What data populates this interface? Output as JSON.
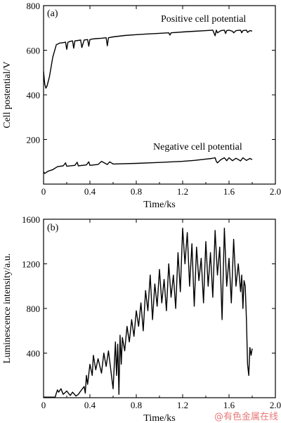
{
  "chart_data": [
    {
      "type": "line",
      "panel_label": "(a)",
      "xlabel": "Time/ks",
      "ylabel": "Cell postential/V",
      "xlim": [
        0,
        2.0
      ],
      "ylim": [
        0,
        800
      ],
      "xticks": [
        "0",
        "0.4",
        "0.8",
        "1.2",
        "1.6",
        "2.0"
      ],
      "xtick_values": [
        0,
        0.4,
        0.8,
        1.2,
        1.6,
        2.0
      ],
      "yticks": [
        "200",
        "400",
        "600",
        "800"
      ],
      "ytick_values": [
        200,
        400,
        600,
        800
      ],
      "series": [
        {
          "name": "Positive cell potential",
          "x": [
            0,
            0.01,
            0.02,
            0.03,
            0.05,
            0.08,
            0.11,
            0.14,
            0.17,
            0.19,
            0.2,
            0.21,
            0.23,
            0.25,
            0.26,
            0.27,
            0.3,
            0.32,
            0.33,
            0.35,
            0.38,
            0.39,
            0.4,
            0.42,
            0.45,
            0.5,
            0.54,
            0.55,
            0.56,
            0.6,
            0.7,
            0.8,
            0.9,
            1.0,
            1.08,
            1.09,
            1.1,
            1.2,
            1.3,
            1.4,
            1.46,
            1.48,
            1.49,
            1.5,
            1.53,
            1.56,
            1.57,
            1.58,
            1.6,
            1.63,
            1.64,
            1.66,
            1.7,
            1.71,
            1.72,
            1.75,
            1.76,
            1.78,
            1.8
          ],
          "values": [
            505,
            450,
            430,
            440,
            480,
            570,
            625,
            632,
            634,
            636,
            604,
            636,
            640,
            642,
            609,
            642,
            644,
            646,
            612,
            646,
            648,
            618,
            648,
            650,
            652,
            654,
            656,
            620,
            656,
            660,
            666,
            670,
            673,
            676,
            678,
            668,
            678,
            682,
            685,
            688,
            690,
            665,
            690,
            678,
            688,
            690,
            675,
            688,
            690,
            685,
            678,
            688,
            690,
            678,
            688,
            690,
            680,
            688,
            686
          ]
        },
        {
          "name": "Negative cell potential",
          "x": [
            0,
            0.01,
            0.04,
            0.08,
            0.12,
            0.17,
            0.19,
            0.2,
            0.27,
            0.29,
            0.3,
            0.37,
            0.39,
            0.4,
            0.47,
            0.5,
            0.55,
            0.57,
            0.6,
            0.8,
            1.0,
            1.2,
            1.3,
            1.4,
            1.45,
            1.48,
            1.49,
            1.5,
            1.53,
            1.56,
            1.58,
            1.6,
            1.63,
            1.66,
            1.7,
            1.72,
            1.75,
            1.78,
            1.8
          ],
          "values": [
            55,
            48,
            58,
            65,
            78,
            82,
            95,
            80,
            84,
            98,
            82,
            86,
            100,
            84,
            88,
            102,
            88,
            100,
            90,
            93,
            97,
            102,
            106,
            112,
            115,
            118,
            102,
            95,
            110,
            118,
            105,
            118,
            105,
            116,
            104,
            118,
            106,
            115,
            110
          ]
        }
      ]
    },
    {
      "type": "line",
      "panel_label": "(b)",
      "xlabel": "Time/ks",
      "ylabel": "Luminescence intensity/a.u.",
      "xlim": [
        0,
        2.0
      ],
      "ylim": [
        0,
        1600
      ],
      "xticks": [
        "0",
        "0.4",
        "0.8",
        "1.2",
        "1.6",
        "2.0"
      ],
      "xtick_values": [
        0,
        0.4,
        0.8,
        1.2,
        1.6,
        2.0
      ],
      "yticks": [
        "400",
        "800",
        "1200",
        "1600"
      ],
      "ytick_values": [
        400,
        800,
        1200,
        1600
      ],
      "series": [
        {
          "name": "",
          "x": [
            0,
            0.05,
            0.1,
            0.11,
            0.12,
            0.13,
            0.15,
            0.17,
            0.2,
            0.23,
            0.25,
            0.28,
            0.3,
            0.32,
            0.35,
            0.36,
            0.37,
            0.38,
            0.4,
            0.42,
            0.43,
            0.45,
            0.47,
            0.5,
            0.52,
            0.54,
            0.56,
            0.58,
            0.6,
            0.62,
            0.63,
            0.64,
            0.65,
            0.66,
            0.67,
            0.68,
            0.7,
            0.72,
            0.74,
            0.76,
            0.78,
            0.8,
            0.82,
            0.84,
            0.86,
            0.88,
            0.9,
            0.92,
            0.94,
            0.96,
            0.98,
            1.0,
            1.02,
            1.04,
            1.06,
            1.08,
            1.1,
            1.12,
            1.14,
            1.16,
            1.18,
            1.2,
            1.22,
            1.24,
            1.26,
            1.28,
            1.3,
            1.32,
            1.34,
            1.36,
            1.38,
            1.4,
            1.42,
            1.44,
            1.46,
            1.48,
            1.5,
            1.52,
            1.54,
            1.56,
            1.58,
            1.6,
            1.62,
            1.64,
            1.66,
            1.68,
            1.7,
            1.71,
            1.72,
            1.73,
            1.74,
            1.75,
            1.76,
            1.77,
            1.78,
            1.79,
            1.8
          ],
          "values": [
            5,
            5,
            5,
            40,
            70,
            50,
            80,
            30,
            60,
            20,
            50,
            15,
            30,
            60,
            100,
            40,
            200,
            120,
            300,
            200,
            380,
            250,
            350,
            220,
            400,
            280,
            420,
            250,
            80,
            500,
            200,
            480,
            30,
            560,
            300,
            540,
            420,
            640,
            500,
            700,
            550,
            780,
            640,
            850,
            600,
            960,
            780,
            1100,
            700,
            1020,
            820,
            1150,
            850,
            1060,
            780,
            1200,
            900,
            1100,
            800,
            1300,
            950,
            1520,
            1200,
            1480,
            1000,
            1380,
            820,
            1350,
            1050,
            1250,
            850,
            1400,
            1000,
            1300,
            900,
            1500,
            1100,
            1350,
            700,
            1520,
            1000,
            1250,
            850,
            1420,
            1000,
            1200,
            950,
            1100,
            800,
            1050,
            1000,
            700,
            300,
            200,
            450,
            380,
            440
          ]
        }
      ]
    }
  ],
  "watermark": "@有色金属在线"
}
